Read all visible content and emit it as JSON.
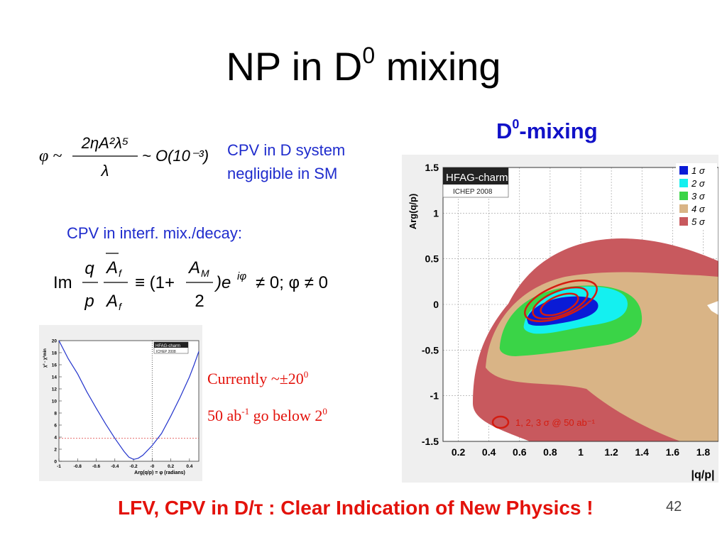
{
  "slide": {
    "title_main": "NP in D",
    "title_sup": "0",
    "title_tail": " mixing",
    "mixing_heading_main": "D",
    "mixing_heading_sup": "0",
    "mixing_heading_tail": "-mixing",
    "note_cpv_line1": "CPV in D system",
    "note_cpv_line2": "negligible in SM",
    "note_interf": "CPV in interf. mix./decay:",
    "currently_text": "Currently ~±20",
    "currently_sup": "0",
    "goal_text_a": "50 ab",
    "goal_sup_a": "-1",
    "goal_text_b": " go below 2",
    "goal_sup_b": "0",
    "footer": "LFV, CPV in D/τ : Clear Indication of New Physics !",
    "page_number": "42"
  },
  "equation1": {
    "lhs": "φ ~",
    "numerator": "2ηA²λ⁵",
    "denominator": "λ",
    "rhs": "~ O(10⁻³)"
  },
  "equation2": {
    "im": "Im",
    "q": "q",
    "p": "p",
    "Abar": "A",
    "Abar_sub": "f",
    "A": "A",
    "A_sub": "f",
    "equiv": "≡ (1+",
    "AM": "A",
    "AM_sub": "M",
    "two": "2",
    "tail": ")e",
    "tail_sup": "iφ",
    "end": "≠ 0; φ ≠ 0"
  },
  "colors": {
    "title": "#000000",
    "blue_text": "#1f2ccd",
    "red_text": "#e3120b",
    "contour_1s": "#0a1bd6",
    "contour_2s": "#14f0f0",
    "contour_3s": "#3ad447",
    "contour_4s": "#d9b486",
    "contour_5s": "#c8595e",
    "projection_ring": "#d41c10"
  },
  "chart_data": [
    {
      "type": "contour",
      "badge_title": "HFAG-charm",
      "badge_subtitle": "ICHEP 2008",
      "xlabel": "|q/p|",
      "ylabel": "Arg(q/p)",
      "xlim": [
        0.1,
        1.9
      ],
      "ylim": [
        -1.5,
        1.5
      ],
      "xticks": [
        "0.2",
        "0.4",
        "0.6",
        "0.8",
        "1",
        "1.2",
        "1.4",
        "1.6",
        "1.8"
      ],
      "yticks": [
        "1.5",
        "1",
        "0.5",
        "0",
        "-0.5",
        "-1",
        "-1.5"
      ],
      "grid": true,
      "legend_position": "top-right",
      "legend": [
        "1 σ",
        "2 σ",
        "3 σ",
        "4 σ",
        "5 σ"
      ],
      "center": {
        "x": 0.85,
        "y": -0.08
      },
      "annotation": "1, 2, 3 σ @ 50 ab⁻¹"
    },
    {
      "type": "line",
      "badge_title": "HFAG-charm",
      "badge_subtitle": "ICHEP 2008",
      "xlabel": "Arg(q/p) = φ (radians)",
      "ylabel": "χ² - χ²min",
      "xlim": [
        -1,
        0.5
      ],
      "ylim": [
        0,
        20
      ],
      "xticks": [
        "-1",
        "-0.8",
        "-0.6",
        "-0.4",
        "-0.2",
        "-0",
        "0.2",
        "0.4"
      ],
      "yticks": [
        "20",
        "18",
        "16",
        "14",
        "12",
        "10",
        "8",
        "6",
        "4",
        "2",
        "0"
      ],
      "hline": 3.84,
      "vline": 0,
      "series": [
        {
          "x": [
            -1.0,
            -0.9,
            -0.8,
            -0.7,
            -0.6,
            -0.5,
            -0.4,
            -0.3,
            -0.25,
            -0.2,
            -0.15,
            -0.1,
            0.0,
            0.1,
            0.2,
            0.3,
            0.4,
            0.45,
            0.5
          ],
          "y": [
            20.0,
            17.0,
            14.5,
            11.5,
            8.8,
            6.2,
            3.8,
            1.6,
            0.7,
            0.3,
            0.5,
            1.0,
            2.6,
            4.6,
            7.5,
            10.6,
            14.0,
            16.0,
            18.2
          ]
        }
      ]
    }
  ]
}
